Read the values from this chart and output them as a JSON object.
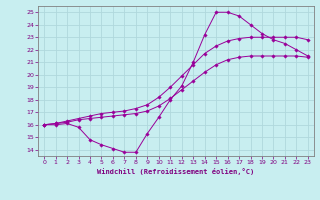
{
  "bg_color": "#c8eef0",
  "line_color": "#990099",
  "grid_color": "#b0d8dc",
  "xlabel": "Windchill (Refroidissement éolien,°C)",
  "xlim": [
    -0.5,
    23.5
  ],
  "ylim": [
    13.5,
    25.5
  ],
  "xticks": [
    0,
    1,
    2,
    3,
    4,
    5,
    6,
    7,
    8,
    9,
    10,
    11,
    12,
    13,
    14,
    15,
    16,
    17,
    18,
    19,
    20,
    21,
    22,
    23
  ],
  "yticks": [
    14,
    15,
    16,
    17,
    18,
    19,
    20,
    21,
    22,
    23,
    24,
    25
  ],
  "line1_x": [
    0,
    1,
    2,
    3,
    4,
    5,
    6,
    7,
    8,
    9,
    10,
    11,
    12,
    13,
    14,
    15,
    16,
    17,
    18,
    19,
    20,
    21,
    22,
    23
  ],
  "line1_y": [
    16.0,
    16.0,
    16.1,
    15.8,
    14.8,
    14.4,
    14.1,
    13.8,
    13.8,
    15.3,
    16.6,
    18.0,
    19.1,
    21.0,
    23.2,
    25.0,
    25.0,
    24.7,
    24.0,
    23.3,
    22.8,
    22.5,
    22.0,
    21.5
  ],
  "line2_x": [
    0,
    1,
    2,
    3,
    4,
    5,
    6,
    7,
    8,
    9,
    10,
    11,
    12,
    13,
    14,
    15,
    16,
    17,
    18,
    19,
    20,
    21,
    22,
    23
  ],
  "line2_y": [
    16.0,
    16.1,
    16.2,
    16.4,
    16.5,
    16.6,
    16.7,
    16.8,
    16.9,
    17.1,
    17.5,
    18.1,
    18.8,
    19.5,
    20.2,
    20.8,
    21.2,
    21.4,
    21.5,
    21.5,
    21.5,
    21.5,
    21.5,
    21.4
  ],
  "line3_x": [
    0,
    1,
    2,
    3,
    4,
    5,
    6,
    7,
    8,
    9,
    10,
    11,
    12,
    13,
    14,
    15,
    16,
    17,
    18,
    19,
    20,
    21,
    22,
    23
  ],
  "line3_y": [
    16.0,
    16.1,
    16.3,
    16.5,
    16.7,
    16.9,
    17.0,
    17.1,
    17.3,
    17.6,
    18.2,
    19.0,
    19.9,
    20.8,
    21.7,
    22.3,
    22.7,
    22.9,
    23.0,
    23.0,
    23.0,
    23.0,
    23.0,
    22.8
  ]
}
